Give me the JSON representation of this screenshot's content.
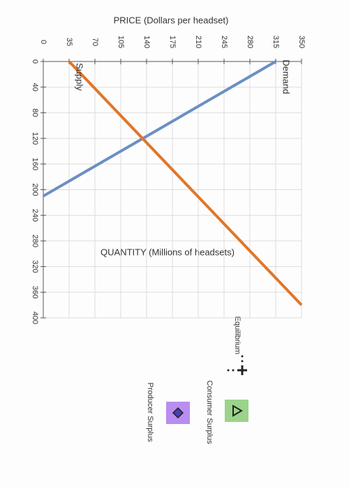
{
  "chart_data": {
    "type": "line",
    "title": "PRICE (Dollars per headset)",
    "x_label": "QUANTITY (Millions of headsets)",
    "series": [
      {
        "name": "Demand",
        "color": "#6b8fc4",
        "x": [
          0,
          210
        ],
        "values": [
          315,
          0
        ]
      },
      {
        "name": "Supply",
        "color": "#e0762a",
        "x": [
          0,
          380
        ],
        "values": [
          35,
          350
        ]
      }
    ],
    "xlim": [
      0,
      400
    ],
    "xticks": [
      0,
      40,
      80,
      120,
      160,
      200,
      240,
      280,
      320,
      360,
      400
    ],
    "ylim": [
      0,
      350
    ],
    "yticks": [
      0,
      35,
      70,
      105,
      140,
      175,
      210,
      245,
      280,
      315,
      350
    ],
    "grid": true,
    "legend": [
      "Equilibrium",
      "Consumer Surplus",
      "Producer Surplus"
    ]
  }
}
